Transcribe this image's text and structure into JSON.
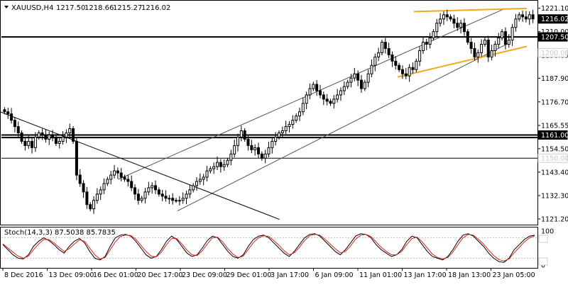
{
  "header": {
    "symbol": "XAUUSD,H4",
    "open": "1217.50",
    "high": "1218.66",
    "low": "1215.27",
    "close": "1216.02"
  },
  "stoch_header": "Stoch(14,3,3) 87.5038 85.7835",
  "colors": {
    "bull_candle": "#000000",
    "bear_candle": "#000000",
    "channel": "#555555",
    "wedge": "#f5a623",
    "level": "#000000",
    "ma_line": "#000000",
    "stoch_main": "#000000",
    "stoch_signal": "#e0201b"
  },
  "chart_data": [
    {
      "type": "candlestick",
      "title": "XAUUSD,H4",
      "ylim": [
        1118.5,
        1225.0
      ],
      "y_ticks": [
        "1221.10",
        "1210.00",
        "1198.85",
        "1187.90",
        "1176.70",
        "1165.55",
        "1154.50",
        "1143.40",
        "1132.30",
        "1121.20"
      ],
      "x_ticks": [
        "8 Dec 2016",
        "13 Dec 09:00",
        "16 Dec 01:00",
        "20 Dec 17:00",
        "23 Dec 09:00",
        "29 Dec 01:00",
        "3 Jan 17:00",
        "6 Jan 09:00",
        "11 Jan 01:00",
        "13 Jan 17:00",
        "18 Jan 13:00",
        "23 Jan 05:00"
      ],
      "price_tags": [
        {
          "value": "1216.02",
          "style": "dark"
        },
        {
          "value": "1207.50",
          "style": "dark"
        },
        {
          "value": "1200.00",
          "style": "light"
        },
        {
          "value": "1161.00",
          "style": "dark"
        },
        {
          "value": "1150.00",
          "style": "light"
        }
      ],
      "horizontal_levels": [
        1207.5,
        1161.0,
        1159.8,
        1150.0
      ],
      "closes": [
        1172,
        1171,
        1168,
        1165,
        1162,
        1158,
        1156,
        1158,
        1155,
        1160,
        1162,
        1161,
        1159,
        1161,
        1160,
        1157,
        1158,
        1160,
        1162,
        1164,
        1158,
        1142,
        1138,
        1134,
        1128,
        1126,
        1130,
        1133,
        1135,
        1138,
        1140,
        1142,
        1144,
        1143,
        1141,
        1140,
        1139,
        1136,
        1133,
        1130,
        1131,
        1134,
        1136,
        1137,
        1135,
        1133,
        1132,
        1131,
        1131,
        1130,
        1130,
        1130,
        1131,
        1133,
        1135,
        1137,
        1139,
        1140,
        1141,
        1144,
        1145,
        1146,
        1148,
        1146,
        1147,
        1149,
        1152,
        1156,
        1160,
        1163,
        1159,
        1156,
        1154,
        1155,
        1152,
        1150,
        1152,
        1155,
        1158,
        1160,
        1162,
        1163,
        1165,
        1166,
        1168,
        1170,
        1172,
        1176,
        1180,
        1183,
        1185,
        1182,
        1180,
        1178,
        1177,
        1176,
        1178,
        1180,
        1182,
        1184,
        1186,
        1188,
        1190,
        1187,
        1183,
        1186,
        1190,
        1194,
        1198,
        1200,
        1205,
        1202,
        1199,
        1196,
        1194,
        1192,
        1190,
        1189,
        1193,
        1192,
        1196,
        1201,
        1205,
        1204,
        1207,
        1210,
        1214,
        1216,
        1218,
        1217,
        1216,
        1214,
        1212,
        1214,
        1210,
        1205,
        1202,
        1198,
        1200,
        1204,
        1206,
        1198,
        1201,
        1204,
        1207,
        1210,
        1204,
        1206,
        1212,
        1216,
        1218,
        1217,
        1216,
        1218,
        1216.02
      ],
      "trend_lines": [
        {
          "name": "channel-upper",
          "x": [
            0.22,
            0.94
          ],
          "y": [
            1140,
            1221
          ]
        },
        {
          "name": "channel-lower",
          "x": [
            0.33,
            0.95
          ],
          "y": [
            1125,
            1205
          ]
        },
        {
          "name": "descending-line",
          "x": [
            0.0,
            0.52
          ],
          "y": [
            1172,
            1121
          ]
        },
        {
          "name": "wedge-top",
          "x": [
            0.77,
            0.98
          ],
          "y": [
            1219.5,
            1221
          ]
        },
        {
          "name": "wedge-bottom",
          "x": [
            0.74,
            0.98
          ],
          "y": [
            1188.5,
            1203
          ]
        }
      ]
    },
    {
      "type": "line",
      "title": "Stoch(14,3,3) 87.5038 85.7835",
      "ylim": [
        0,
        100
      ],
      "y_ticks": [
        "100",
        "0"
      ],
      "series": [
        {
          "name": "main",
          "values": [
            60,
            45,
            30,
            20,
            18,
            30,
            55,
            70,
            80,
            72,
            60,
            45,
            35,
            55,
            70,
            78,
            65,
            40,
            20,
            15,
            25,
            55,
            80,
            88,
            90,
            85,
            70,
            50,
            30,
            20,
            25,
            45,
            70,
            85,
            75,
            55,
            35,
            25,
            30,
            50,
            72,
            85,
            80,
            60,
            40,
            25,
            20,
            30,
            55,
            75,
            85,
            88,
            80,
            65,
            50,
            35,
            25,
            40,
            60,
            80,
            90,
            92,
            85,
            70,
            55,
            40,
            30,
            45,
            65,
            85,
            92,
            90,
            80,
            60,
            45,
            35,
            25,
            30,
            45,
            70,
            85,
            80,
            60,
            40,
            25,
            20,
            15,
            25,
            45,
            70,
            88,
            92,
            85,
            70,
            55,
            35,
            20,
            10,
            8,
            20,
            45,
            60,
            75,
            85,
            87.5
          ]
        },
        {
          "name": "signal",
          "values": [
            62,
            50,
            38,
            26,
            20,
            26,
            45,
            62,
            75,
            75,
            65,
            52,
            40,
            48,
            62,
            74,
            70,
            50,
            30,
            18,
            22,
            45,
            68,
            84,
            88,
            87,
            76,
            58,
            40,
            26,
            24,
            38,
            60,
            78,
            78,
            62,
            44,
            30,
            28,
            42,
            62,
            80,
            82,
            68,
            48,
            32,
            22,
            26,
            46,
            66,
            80,
            86,
            84,
            72,
            58,
            42,
            30,
            36,
            52,
            72,
            86,
            90,
            88,
            76,
            62,
            48,
            36,
            40,
            56,
            76,
            88,
            90,
            84,
            68,
            52,
            40,
            30,
            30,
            40,
            60,
            78,
            82,
            68,
            50,
            32,
            22,
            18,
            22,
            38,
            60,
            80,
            90,
            88,
            76,
            62,
            44,
            28,
            16,
            12,
            18,
            36,
            52,
            68,
            80,
            85.78
          ]
        }
      ]
    }
  ]
}
